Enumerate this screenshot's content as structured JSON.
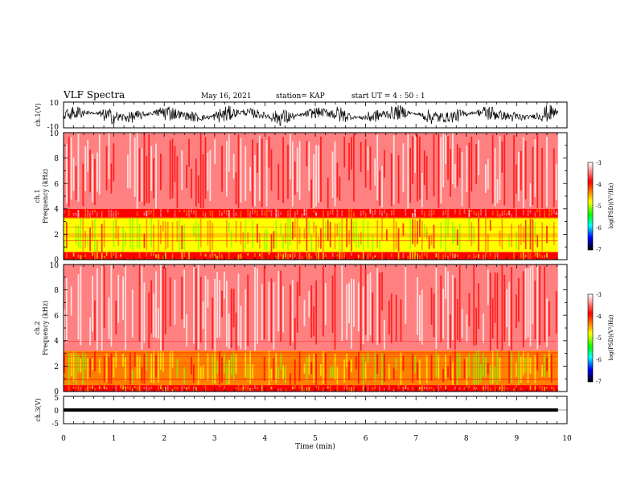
{
  "header": {
    "title": "VLF Spectra",
    "date": "May 16, 2021",
    "station": "station= KAP",
    "start": "start  UT =   4 : 50 : 1"
  },
  "chart_data": {
    "type": "heatmap",
    "title": "VLF Spectra",
    "xlabel": "Time  (min)",
    "xlim": [
      0,
      10
    ],
    "x_ticks": [
      "0",
      "1",
      "2",
      "3",
      "4",
      "5",
      "6",
      "7",
      "8",
      "9",
      "10"
    ],
    "data_end_min": 9.82,
    "panels": [
      {
        "name": "ch1-waveform",
        "ylabel": "ch.1(V)",
        "ylim": [
          -10,
          10
        ],
        "y_ticks": [
          "10",
          "-10"
        ],
        "trace_amplitude": 7,
        "color": "#000000"
      },
      {
        "name": "ch1-spectrogram",
        "ylabel_line1": "ch.1",
        "ylabel_line2": "Frequency  (kHz)",
        "ylim": [
          0,
          10
        ],
        "y_ticks": [
          "0",
          "2",
          "4",
          "6",
          "8",
          "10"
        ],
        "colorbar_label": "log(PSD)(V²/Hz)",
        "colorbar_range": [
          -7,
          -3
        ],
        "colorbar_ticks": [
          "-3",
          "-4",
          "-5",
          "-6",
          "-7"
        ],
        "bands": [
          {
            "from_khz": 4.0,
            "to_khz": 10.0,
            "level": -3.6
          },
          {
            "from_khz": 3.3,
            "to_khz": 4.0,
            "level": -3.9
          },
          {
            "from_khz": 0.6,
            "to_khz": 3.3,
            "level": -4.8
          },
          {
            "from_khz": 0.0,
            "to_khz": 0.6,
            "level": -4.3
          }
        ]
      },
      {
        "name": "ch2-spectrogram",
        "ylabel_line1": "ch.2",
        "ylabel_line2": "Frequency  (kHz)",
        "ylim": [
          0,
          10
        ],
        "y_ticks": [
          "0",
          "2",
          "4",
          "6",
          "8",
          "10"
        ],
        "colorbar_label": "log(PSD)(V²/Hz)",
        "colorbar_range": [
          -7,
          -3
        ],
        "colorbar_ticks": [
          "-3",
          "-4",
          "-5",
          "-6",
          "-7"
        ],
        "bands": [
          {
            "from_khz": 3.2,
            "to_khz": 10.0,
            "level": -3.5
          },
          {
            "from_khz": 0.5,
            "to_khz": 3.2,
            "level": -4.7
          },
          {
            "from_khz": 0.0,
            "to_khz": 0.5,
            "level": -4.2
          }
        ]
      },
      {
        "name": "ch3-waveform",
        "ylabel": "ch.3(V)",
        "ylim": [
          -5,
          5
        ],
        "y_ticks": [
          "5",
          "0",
          "-5"
        ],
        "trace_offset": 0,
        "trace_amplitude": 0.6,
        "color": "#000000"
      }
    ],
    "grid": false
  },
  "colors": {
    "colormap": [
      "#ffffff",
      "#ff0000",
      "#ffff00",
      "#00ff00",
      "#00ffff",
      "#0000ff",
      "#000000"
    ]
  }
}
